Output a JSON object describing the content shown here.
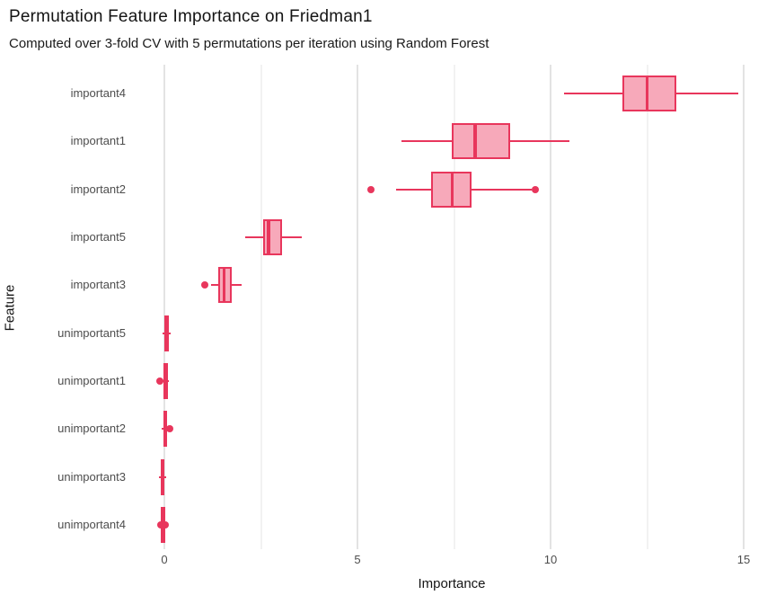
{
  "header": {
    "title": "Permutation Feature Importance on Friedman1",
    "subtitle": "Computed over 3-fold CV with 5 permutations per iteration using Random Forest"
  },
  "chart_data": {
    "type": "boxplot",
    "orientation": "horizontal",
    "title": "Permutation Feature Importance on Friedman1",
    "subtitle": "Computed over 3-fold CV with 5 permutations per iteration using Random Forest",
    "xlabel": "Importance",
    "ylabel": "Feature",
    "xlim": [
      -0.77,
      15.7
    ],
    "x_major_ticks": [
      0,
      5,
      10,
      15
    ],
    "x_minor_ticks": [
      2.5,
      7.5,
      12.5
    ],
    "grid": "vertical-only",
    "legend": "none",
    "colors": {
      "box_stroke": "#e8365c",
      "box_fill": "#f7a9ba",
      "grid_major": "#e3e3e3",
      "grid_minor": "#f2f2f2",
      "tick_text": "#4d4d4d",
      "label_text": "#141414",
      "background": "#ffffff"
    },
    "categories": [
      "important4",
      "important1",
      "important2",
      "important5",
      "important3",
      "unimportant5",
      "unimportant1",
      "unimportant2",
      "unimportant3",
      "unimportant4"
    ],
    "series": [
      {
        "feature": "important4",
        "whisker_low": 10.35,
        "q1": 11.85,
        "median": 12.5,
        "q3": 13.25,
        "whisker_high": 14.85,
        "outliers": []
      },
      {
        "feature": "important1",
        "whisker_low": 6.15,
        "q1": 7.45,
        "median": 8.05,
        "q3": 8.95,
        "whisker_high": 10.5,
        "outliers": []
      },
      {
        "feature": "important2",
        "whisker_low": 6.0,
        "q1": 6.9,
        "median": 7.45,
        "q3": 7.95,
        "whisker_high": 9.5,
        "outliers": [
          5.35,
          9.6
        ]
      },
      {
        "feature": "important5",
        "whisker_low": 2.1,
        "q1": 2.55,
        "median": 2.7,
        "q3": 3.05,
        "whisker_high": 3.55,
        "outliers": []
      },
      {
        "feature": "important3",
        "whisker_low": 1.2,
        "q1": 1.4,
        "median": 1.55,
        "q3": 1.75,
        "whisker_high": 2.0,
        "outliers": [
          1.05
        ]
      },
      {
        "feature": "unimportant5",
        "whisker_low": -0.05,
        "q1": 0.0,
        "median": 0.05,
        "q3": 0.12,
        "whisker_high": 0.16,
        "outliers": []
      },
      {
        "feature": "unimportant1",
        "whisker_low": -0.05,
        "q1": -0.03,
        "median": 0.02,
        "q3": 0.09,
        "whisker_high": 0.12,
        "outliers": [
          -0.11
        ]
      },
      {
        "feature": "unimportant2",
        "whisker_low": -0.06,
        "q1": -0.03,
        "median": 0.01,
        "q3": 0.07,
        "whisker_high": 0.1,
        "outliers": [
          0.13
        ]
      },
      {
        "feature": "unimportant3",
        "whisker_low": -0.15,
        "q1": -0.09,
        "median": -0.04,
        "q3": 0.01,
        "whisker_high": 0.05,
        "outliers": []
      },
      {
        "feature": "unimportant4",
        "whisker_low": -0.12,
        "q1": -0.09,
        "median": -0.03,
        "q3": 0.03,
        "whisker_high": 0.07,
        "outliers": [
          -0.1,
          0.02
        ]
      }
    ]
  }
}
